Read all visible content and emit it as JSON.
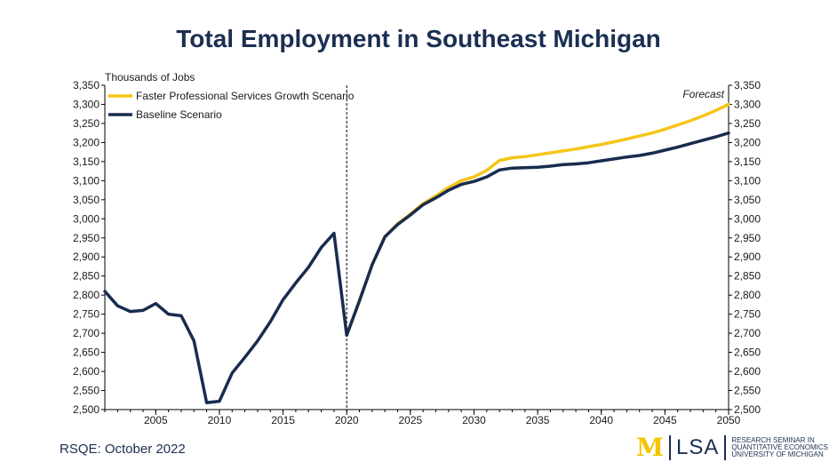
{
  "page_title": "Total Employment in Southeast Michigan",
  "footer": {
    "source": "RSQE: October 2022",
    "logo_mark": "M",
    "logo_lsa": "LSA",
    "logo_lines": [
      "RESEARCH SEMINAR IN",
      "QUANTITATIVE ECONOMICS",
      "UNIVERSITY OF MICHIGAN"
    ]
  },
  "chart_data": {
    "type": "line",
    "title": "Total Employment in Southeast Michigan",
    "ylabel": "Thousands of Jobs",
    "xlabel": "",
    "xlim": [
      2001,
      2050
    ],
    "ylim": [
      2500,
      3350
    ],
    "x_ticks": [
      2005,
      2010,
      2015,
      2020,
      2025,
      2030,
      2035,
      2040,
      2045,
      2050
    ],
    "y_ticks": [
      2500,
      2550,
      2600,
      2650,
      2700,
      2750,
      2800,
      2850,
      2900,
      2950,
      3000,
      3050,
      3100,
      3150,
      3200,
      3250,
      3300,
      3350
    ],
    "y_tick_labels": [
      "2,500",
      "2,550",
      "2,600",
      "2,650",
      "2,700",
      "2,750",
      "2,800",
      "2,850",
      "2,900",
      "2,950",
      "3,000",
      "3,050",
      "3,100",
      "3,150",
      "3,200",
      "3,250",
      "3,300",
      "3,350"
    ],
    "forecast_start": 2020,
    "forecast_label": "Forecast",
    "legend_position": "top-left",
    "series": [
      {
        "name": "Faster Professional Services Growth Scenario",
        "color": "#f5c518",
        "x": [
          2020,
          2021,
          2022,
          2023,
          2024,
          2025,
          2026,
          2027,
          2028,
          2029,
          2030,
          2031,
          2032,
          2033,
          2034,
          2035,
          2036,
          2037,
          2038,
          2039,
          2040,
          2041,
          2042,
          2043,
          2044,
          2045,
          2046,
          2047,
          2048,
          2049,
          2050
        ],
        "values": [
          2695,
          2785,
          2880,
          2953,
          2987,
          3012,
          3040,
          3060,
          3082,
          3100,
          3110,
          3127,
          3153,
          3160,
          3163,
          3168,
          3173,
          3178,
          3183,
          3189,
          3195,
          3202,
          3209,
          3217,
          3225,
          3235,
          3246,
          3257,
          3270,
          3284,
          3300
        ]
      },
      {
        "name": "Baseline Scenario",
        "color": "#182c4f",
        "x": [
          2001,
          2002,
          2003,
          2004,
          2005,
          2006,
          2007,
          2008,
          2009,
          2010,
          2011,
          2012,
          2013,
          2014,
          2015,
          2016,
          2017,
          2018,
          2019,
          2020,
          2021,
          2022,
          2023,
          2024,
          2025,
          2026,
          2027,
          2028,
          2029,
          2030,
          2031,
          2032,
          2033,
          2034,
          2035,
          2036,
          2037,
          2038,
          2039,
          2040,
          2041,
          2042,
          2043,
          2044,
          2045,
          2046,
          2047,
          2048,
          2049,
          2050
        ],
        "values": [
          2810,
          2772,
          2757,
          2760,
          2778,
          2750,
          2746,
          2680,
          2518,
          2522,
          2596,
          2637,
          2680,
          2730,
          2788,
          2832,
          2873,
          2925,
          2962,
          2695,
          2785,
          2880,
          2953,
          2985,
          3010,
          3037,
          3055,
          3075,
          3090,
          3098,
          3110,
          3128,
          3133,
          3134,
          3135,
          3138,
          3142,
          3144,
          3147,
          3152,
          3157,
          3162,
          3166,
          3172,
          3180,
          3188,
          3197,
          3206,
          3215,
          3225
        ]
      }
    ]
  }
}
